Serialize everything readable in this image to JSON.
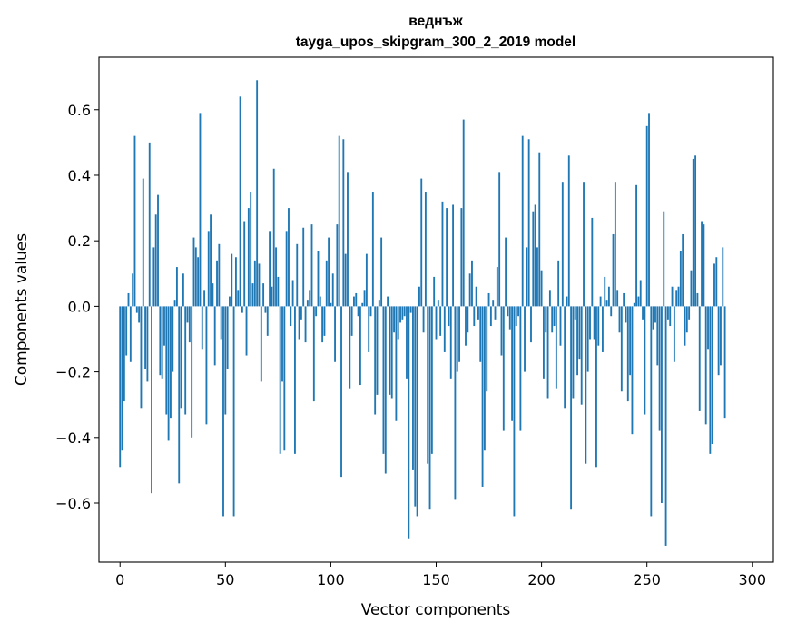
{
  "chart_data": {
    "type": "bar",
    "title": "веднъж",
    "subtitle": "tayga_upos_skipgram_300_2_2019 model",
    "xlabel": "Vector components",
    "ylabel": "Components values",
    "xlim": [
      -10,
      310
    ],
    "ylim": [
      -0.78,
      0.76
    ],
    "xticks": [
      0,
      50,
      100,
      150,
      200,
      250,
      300
    ],
    "xtick_labels": [
      "0",
      "50",
      "100",
      "150",
      "200",
      "250",
      "300"
    ],
    "yticks": [
      -0.6,
      -0.4,
      -0.2,
      0.0,
      0.2,
      0.4,
      0.6
    ],
    "ytick_labels": [
      "−0.6",
      "−0.4",
      "−0.2",
      "0.0",
      "0.2",
      "0.4",
      "0.6"
    ],
    "color": "#1f77b4",
    "values": [
      -0.49,
      -0.44,
      -0.29,
      -0.15,
      0.04,
      -0.17,
      0.1,
      0.52,
      -0.02,
      -0.05,
      -0.31,
      0.39,
      -0.19,
      -0.23,
      0.5,
      -0.57,
      0.18,
      0.28,
      0.34,
      -0.21,
      -0.22,
      -0.12,
      -0.33,
      -0.41,
      -0.34,
      -0.2,
      0.02,
      0.12,
      -0.54,
      -0.31,
      0.1,
      -0.33,
      -0.05,
      -0.11,
      -0.4,
      0.21,
      0.18,
      0.15,
      0.59,
      -0.13,
      0.05,
      -0.36,
      0.23,
      0.28,
      0.07,
      -0.18,
      0.14,
      0.19,
      -0.1,
      -0.64,
      -0.33,
      -0.19,
      0.03,
      0.16,
      -0.64,
      0.15,
      0.05,
      0.64,
      -0.02,
      0.26,
      -0.15,
      0.3,
      0.35,
      0.07,
      0.14,
      0.69,
      0.13,
      -0.23,
      0.07,
      -0.02,
      -0.09,
      0.23,
      0.06,
      0.42,
      0.18,
      0.09,
      -0.45,
      -0.23,
      -0.44,
      0.23,
      0.3,
      -0.06,
      0.08,
      -0.45,
      0.19,
      -0.1,
      -0.04,
      0.24,
      -0.11,
      0.02,
      0.05,
      0.25,
      -0.29,
      -0.03,
      0.17,
      0.03,
      -0.11,
      -0.09,
      0.14,
      0.21,
      0.01,
      0.1,
      -0.17,
      0.25,
      0.52,
      -0.52,
      0.51,
      0.16,
      0.41,
      -0.25,
      -0.09,
      0.03,
      0.04,
      -0.03,
      -0.24,
      0.01,
      0.05,
      0.16,
      -0.14,
      -0.03,
      0.35,
      -0.33,
      -0.27,
      0.02,
      0.21,
      -0.45,
      -0.51,
      0.03,
      -0.27,
      -0.28,
      -0.08,
      -0.35,
      -0.1,
      -0.05,
      -0.04,
      -0.03,
      -0.22,
      -0.71,
      -0.02,
      -0.5,
      -0.61,
      -0.64,
      0.06,
      0.39,
      -0.08,
      0.35,
      -0.48,
      -0.62,
      -0.45,
      0.09,
      -0.1,
      0.02,
      -0.09,
      0.32,
      -0.14,
      0.3,
      -0.06,
      -0.22,
      0.31,
      -0.59,
      -0.2,
      -0.17,
      0.3,
      0.57,
      -0.12,
      -0.08,
      0.1,
      0.14,
      -0.06,
      0.06,
      -0.04,
      -0.17,
      -0.55,
      -0.44,
      -0.26,
      0.04,
      -0.06,
      0.02,
      -0.04,
      0.12,
      0.41,
      -0.15,
      -0.38,
      0.21,
      -0.03,
      -0.07,
      -0.35,
      -0.64,
      -0.06,
      -0.03,
      -0.38,
      0.52,
      -0.2,
      0.18,
      0.51,
      -0.11,
      0.29,
      0.31,
      0.18,
      0.47,
      0.11,
      -0.22,
      -0.08,
      -0.28,
      0.05,
      -0.08,
      -0.06,
      -0.25,
      0.14,
      -0.12,
      0.38,
      -0.31,
      0.03,
      0.46,
      -0.62,
      -0.28,
      -0.04,
      -0.21,
      -0.16,
      -0.3,
      0.38,
      -0.48,
      -0.2,
      -0.1,
      0.27,
      -0.1,
      -0.49,
      -0.12,
      0.03,
      -0.14,
      0.09,
      0.02,
      0.06,
      -0.03,
      0.22,
      0.38,
      0.05,
      -0.08,
      -0.26,
      0.04,
      -0.05,
      -0.29,
      -0.21,
      -0.39,
      0.01,
      0.37,
      0.03,
      0.08,
      -0.04,
      -0.33,
      0.55,
      0.59,
      -0.64,
      -0.07,
      -0.05,
      -0.18,
      -0.38,
      -0.6,
      0.29,
      -0.73,
      -0.04,
      -0.06,
      0.06,
      -0.17,
      0.05,
      0.06,
      0.17,
      0.22,
      -0.12,
      -0.08,
      -0.04,
      0.11,
      0.45,
      0.46,
      0.04,
      -0.32,
      0.26,
      0.25,
      -0.36,
      -0.13,
      -0.45,
      -0.42,
      0.13,
      0.15,
      -0.21,
      -0.18,
      0.18,
      -0.34
    ]
  }
}
